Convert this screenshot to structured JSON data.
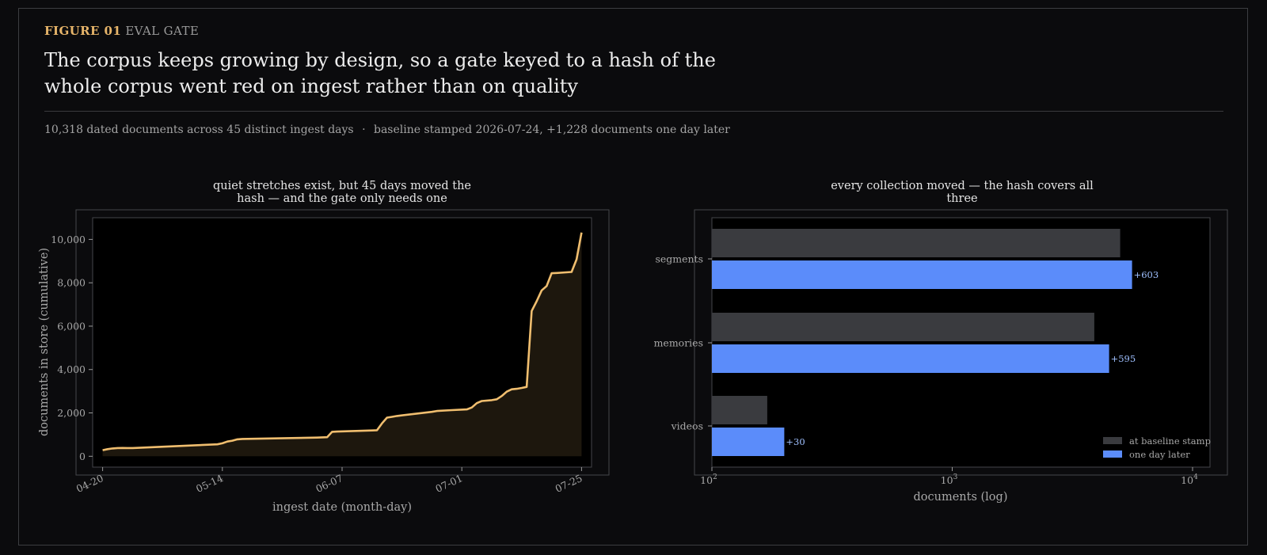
{
  "header": {
    "figure_number": "FIGURE 01",
    "figure_label": "EVAL GATE",
    "headline": "The corpus keeps growing by design, so a gate keyed to a hash of the whole corpus went red on ingest rather than on quality",
    "stat_left": "10,318 dated documents across 45 distinct ingest days",
    "stat_separator": "·",
    "stat_right": "baseline stamped 2026-07-24, +1,228 documents one day later"
  },
  "colors": {
    "accent_line": "#f0be6f",
    "accent_kicker": "#e7b56a",
    "bar_baseline": "#3a3b3f",
    "bar_later": "#5b8cfa",
    "delta_label": "#9fc0ff"
  },
  "chart_data": [
    {
      "type": "area",
      "title": "quiet stretches exist, but 45 days moved the hash — and the gate only needs one",
      "xlabel": "ingest date (month-day)",
      "ylabel": "documents in store (cumulative)",
      "ylim": [
        -500,
        11000
      ],
      "x_tick_labels": [
        "04-20",
        "05-14",
        "06-07",
        "07-01",
        "07-25"
      ],
      "y_tick_labels": [
        "0",
        "2,000",
        "4,000",
        "6,000",
        "8,000",
        "10,000"
      ],
      "y_ticks": [
        0,
        2000,
        4000,
        6000,
        8000,
        10000
      ],
      "x_day_range": [
        -2,
        98
      ],
      "x_ticks": [
        0,
        24,
        48,
        72,
        96
      ],
      "series": [
        {
          "x": [
            0,
            1,
            2,
            3,
            4,
            5,
            6,
            23,
            24,
            25,
            26,
            27,
            28,
            43,
            45,
            46,
            47,
            54,
            55,
            56,
            57,
            58,
            59,
            66,
            67,
            70,
            73,
            74,
            75,
            76,
            78,
            79,
            80,
            81,
            82,
            83,
            84,
            85,
            86,
            87,
            88,
            89,
            90,
            91,
            94,
            95,
            96
          ],
          "y": [
            280,
            330,
            360,
            380,
            385,
            380,
            380,
            550,
            600,
            680,
            720,
            780,
            800,
            860,
            880,
            1130,
            1140,
            1190,
            1200,
            1520,
            1780,
            1820,
            1860,
            2050,
            2090,
            2130,
            2160,
            2250,
            2450,
            2550,
            2590,
            2630,
            2780,
            2980,
            3090,
            3110,
            3150,
            3200,
            6700,
            7150,
            7650,
            7850,
            8440,
            8450,
            8500,
            9080,
            10318
          ]
        }
      ]
    },
    {
      "type": "bar",
      "orientation": "horizontal",
      "title": "every collection moved — the hash covers all three",
      "xlabel": "documents (log)",
      "xscale": "log",
      "xlim": [
        100,
        10000
      ],
      "x_tick_labels": [
        "10",
        "10",
        "10"
      ],
      "x_tick_exponents": [
        "2",
        "3",
        "4"
      ],
      "categories": [
        "segments",
        "memories",
        "videos"
      ],
      "series": [
        {
          "name": "at baseline stamp",
          "values": [
            5000,
            3900,
            170
          ]
        },
        {
          "name": "one day later",
          "values": [
            5603,
            4495,
            200
          ]
        }
      ],
      "delta_labels": [
        "+603",
        "+595",
        "+30"
      ],
      "legend_position": "bottom-right"
    }
  ]
}
